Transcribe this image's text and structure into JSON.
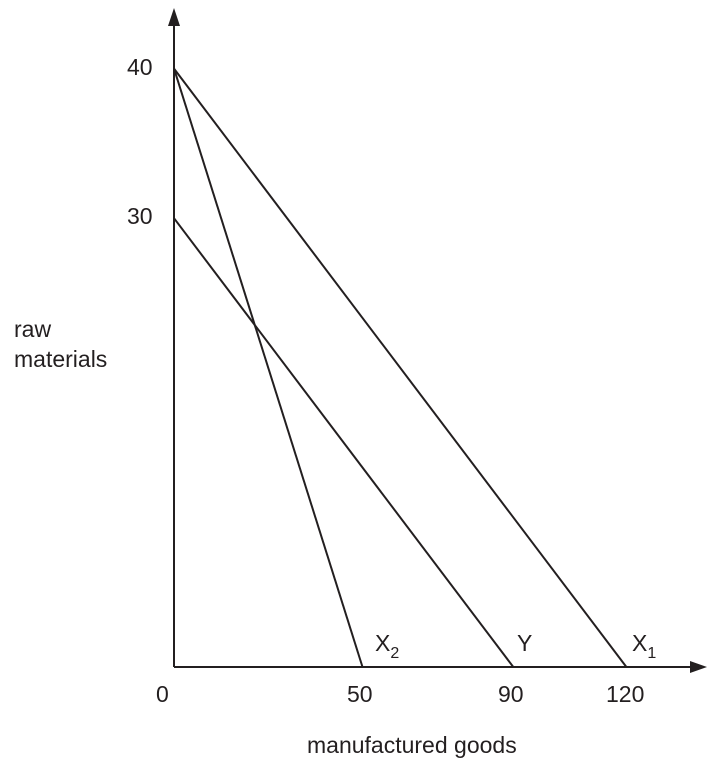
{
  "chart_data": {
    "type": "line",
    "title": "",
    "xlabel": "manufactured goods",
    "ylabel_line1": "raw",
    "ylabel_line2": "materials",
    "origin_label": "0",
    "xlim": [
      0,
      140
    ],
    "ylim": [
      0,
      43
    ],
    "x_ticks": [
      "50",
      "90",
      "120"
    ],
    "y_ticks": [
      "40",
      "30"
    ],
    "grid": false,
    "legend": "none",
    "series": [
      {
        "name": "X",
        "subscript": "2",
        "points": [
          [
            0,
            40
          ],
          [
            50,
            0
          ]
        ]
      },
      {
        "name": "Y",
        "subscript": "",
        "points": [
          [
            0,
            30
          ],
          [
            90,
            0
          ]
        ]
      },
      {
        "name": "X",
        "subscript": "1",
        "points": [
          [
            0,
            40
          ],
          [
            120,
            0
          ]
        ]
      }
    ],
    "color": "#231f20"
  }
}
